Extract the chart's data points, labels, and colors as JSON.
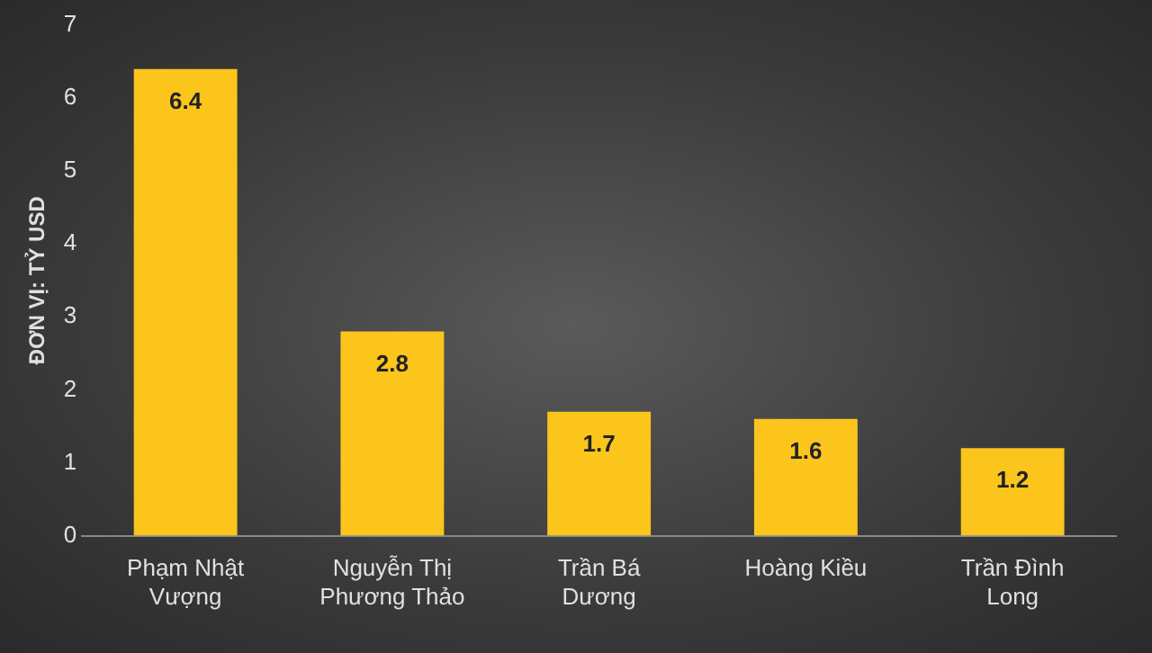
{
  "chart_data": {
    "type": "bar",
    "ylabel": "ĐƠN VỊ: TỶ USD",
    "categories": [
      "Phạm Nhật Vượng",
      "Nguyễn Thị Phương Thảo",
      "Trần Bá Dương",
      "Hoàng Kiều",
      "Trần Đình Long"
    ],
    "values": [
      6.4,
      2.8,
      1.7,
      1.6,
      1.2
    ],
    "color": "#fbc51c",
    "ylim": [
      0,
      7
    ],
    "yticks": [
      0,
      1,
      2,
      3,
      4,
      5,
      6,
      7
    ],
    "grid": false,
    "legend": false,
    "data_labels": true
  }
}
